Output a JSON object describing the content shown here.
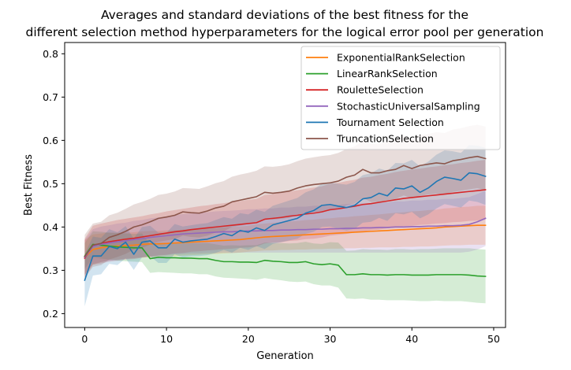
{
  "chart_data": {
    "type": "line",
    "title": [
      "Averages and standard deviations of the best fitness for the",
      "different selection method hyperparameters for the logical error pool per generation"
    ],
    "xlabel": "Generation",
    "ylabel": "Best Fitness",
    "xlim": [
      -2.45,
      51.45
    ],
    "ylim": [
      0.168,
      0.826
    ],
    "xticks": [
      0,
      10,
      20,
      30,
      40,
      50
    ],
    "xtick_labels": [
      "0",
      "10",
      "20",
      "30",
      "40",
      "50"
    ],
    "yticks": [
      0.2,
      0.3,
      0.4,
      0.5,
      0.6,
      0.7,
      0.8
    ],
    "ytick_labels": [
      "0.2",
      "0.3",
      "0.4",
      "0.5",
      "0.6",
      "0.7",
      "0.8"
    ],
    "grid": false,
    "legend_position": "top-right",
    "series": [
      {
        "name": "ExponentialRankSelection",
        "color": "#ff7f0e",
        "mean": [
          0.33,
          0.348,
          0.352,
          0.355,
          0.356,
          0.357,
          0.358,
          0.36,
          0.361,
          0.361,
          0.362,
          0.363,
          0.364,
          0.365,
          0.366,
          0.367,
          0.368,
          0.369,
          0.37,
          0.371,
          0.373,
          0.375,
          0.377,
          0.378,
          0.379,
          0.38,
          0.381,
          0.382,
          0.383,
          0.384,
          0.385,
          0.386,
          0.387,
          0.388,
          0.389,
          0.39,
          0.391,
          0.392,
          0.393,
          0.394,
          0.395,
          0.396,
          0.397,
          0.398,
          0.4,
          0.401,
          0.402,
          0.403,
          0.404,
          0.404
        ],
        "std": [
          0.04,
          0.035,
          0.033,
          0.032,
          0.031,
          0.03,
          0.03,
          0.03,
          0.03,
          0.03,
          0.03,
          0.03,
          0.03,
          0.03,
          0.03,
          0.03,
          0.03,
          0.03,
          0.03,
          0.03,
          0.03,
          0.031,
          0.031,
          0.032,
          0.032,
          0.033,
          0.033,
          0.034,
          0.034,
          0.035,
          0.035,
          0.036,
          0.036,
          0.037,
          0.037,
          0.038,
          0.038,
          0.039,
          0.04,
          0.04,
          0.041,
          0.041,
          0.042,
          0.042,
          0.043,
          0.043,
          0.044,
          0.044,
          0.045,
          0.045
        ]
      },
      {
        "name": "LinearRankSelection",
        "color": "#2ca02c",
        "mean": [
          0.333,
          0.36,
          0.358,
          0.356,
          0.354,
          0.353,
          0.352,
          0.352,
          0.327,
          0.33,
          0.329,
          0.329,
          0.328,
          0.328,
          0.327,
          0.327,
          0.323,
          0.32,
          0.32,
          0.319,
          0.319,
          0.318,
          0.323,
          0.321,
          0.32,
          0.318,
          0.318,
          0.32,
          0.315,
          0.313,
          0.315,
          0.312,
          0.29,
          0.29,
          0.292,
          0.29,
          0.29,
          0.289,
          0.29,
          0.29,
          0.289,
          0.289,
          0.289,
          0.29,
          0.29,
          0.29,
          0.29,
          0.289,
          0.287,
          0.286
        ],
        "std": [
          0.03,
          0.03,
          0.031,
          0.031,
          0.032,
          0.032,
          0.032,
          0.033,
          0.033,
          0.034,
          0.034,
          0.035,
          0.035,
          0.035,
          0.036,
          0.036,
          0.037,
          0.037,
          0.038,
          0.038,
          0.039,
          0.04,
          0.041,
          0.042,
          0.043,
          0.044,
          0.045,
          0.046,
          0.047,
          0.048,
          0.05,
          0.052,
          0.055,
          0.056,
          0.057,
          0.058,
          0.058,
          0.058,
          0.059,
          0.059,
          0.059,
          0.06,
          0.06,
          0.06,
          0.061,
          0.061,
          0.061,
          0.062,
          0.062,
          0.062
        ]
      },
      {
        "name": "RouletteSelection",
        "color": "#d62728",
        "mean": [
          0.328,
          0.358,
          0.362,
          0.366,
          0.369,
          0.372,
          0.374,
          0.377,
          0.38,
          0.383,
          0.386,
          0.389,
          0.391,
          0.394,
          0.396,
          0.398,
          0.4,
          0.402,
          0.404,
          0.406,
          0.408,
          0.41,
          0.418,
          0.42,
          0.422,
          0.425,
          0.427,
          0.43,
          0.432,
          0.435,
          0.44,
          0.442,
          0.445,
          0.448,
          0.452,
          0.454,
          0.457,
          0.46,
          0.463,
          0.466,
          0.468,
          0.47,
          0.472,
          0.474,
          0.476,
          0.478,
          0.48,
          0.482,
          0.484,
          0.486
        ],
        "std": [
          0.045,
          0.045,
          0.046,
          0.046,
          0.047,
          0.047,
          0.048,
          0.048,
          0.049,
          0.049,
          0.05,
          0.05,
          0.051,
          0.051,
          0.052,
          0.052,
          0.053,
          0.053,
          0.054,
          0.054,
          0.055,
          0.055,
          0.056,
          0.056,
          0.057,
          0.057,
          0.058,
          0.058,
          0.059,
          0.059,
          0.06,
          0.06,
          0.061,
          0.061,
          0.062,
          0.062,
          0.063,
          0.063,
          0.064,
          0.064,
          0.065,
          0.065,
          0.066,
          0.066,
          0.067,
          0.067,
          0.068,
          0.068,
          0.069,
          0.069
        ]
      },
      {
        "name": "StochasticUniversalSampling",
        "color": "#9467bd",
        "mean": [
          0.33,
          0.355,
          0.36,
          0.363,
          0.366,
          0.368,
          0.371,
          0.373,
          0.376,
          0.378,
          0.38,
          0.382,
          0.384,
          0.385,
          0.386,
          0.387,
          0.388,
          0.389,
          0.389,
          0.39,
          0.391,
          0.391,
          0.392,
          0.392,
          0.393,
          0.393,
          0.394,
          0.394,
          0.395,
          0.395,
          0.396,
          0.396,
          0.397,
          0.397,
          0.398,
          0.398,
          0.399,
          0.399,
          0.4,
          0.4,
          0.401,
          0.401,
          0.402,
          0.402,
          0.403,
          0.403,
          0.404,
          0.406,
          0.412,
          0.42
        ],
        "std": [
          0.04,
          0.04,
          0.041,
          0.041,
          0.042,
          0.042,
          0.043,
          0.043,
          0.044,
          0.044,
          0.045,
          0.045,
          0.046,
          0.046,
          0.047,
          0.047,
          0.048,
          0.048,
          0.049,
          0.049,
          0.05,
          0.05,
          0.051,
          0.051,
          0.052,
          0.052,
          0.053,
          0.053,
          0.054,
          0.054,
          0.055,
          0.055,
          0.056,
          0.056,
          0.057,
          0.057,
          0.058,
          0.058,
          0.059,
          0.059,
          0.06,
          0.06,
          0.061,
          0.061,
          0.062,
          0.062,
          0.063,
          0.063,
          0.064,
          0.064
        ]
      },
      {
        "name": "Tournament Selection",
        "color": "#1f77b4",
        "mean": [
          0.277,
          0.333,
          0.333,
          0.355,
          0.35,
          0.365,
          0.337,
          0.365,
          0.368,
          0.352,
          0.352,
          0.372,
          0.365,
          0.368,
          0.37,
          0.372,
          0.378,
          0.385,
          0.38,
          0.392,
          0.388,
          0.398,
          0.392,
          0.405,
          0.41,
          0.415,
          0.42,
          0.432,
          0.438,
          0.45,
          0.452,
          0.448,
          0.445,
          0.45,
          0.465,
          0.468,
          0.478,
          0.472,
          0.49,
          0.488,
          0.495,
          0.48,
          0.49,
          0.505,
          0.515,
          0.512,
          0.508,
          0.525,
          0.523,
          0.517
        ],
        "std": [
          0.06,
          0.045,
          0.042,
          0.04,
          0.038,
          0.037,
          0.036,
          0.035,
          0.035,
          0.035,
          0.035,
          0.035,
          0.036,
          0.036,
          0.037,
          0.037,
          0.038,
          0.038,
          0.039,
          0.04,
          0.041,
          0.042,
          0.043,
          0.044,
          0.045,
          0.046,
          0.047,
          0.048,
          0.049,
          0.05,
          0.051,
          0.052,
          0.053,
          0.054,
          0.055,
          0.056,
          0.057,
          0.058,
          0.058,
          0.059,
          0.06,
          0.06,
          0.061,
          0.062,
          0.062,
          0.063,
          0.063,
          0.064,
          0.065,
          0.066
        ]
      },
      {
        "name": "TruncationSelection",
        "color": "#8c564b",
        "mean": [
          0.332,
          0.358,
          0.362,
          0.376,
          0.382,
          0.39,
          0.4,
          0.405,
          0.412,
          0.42,
          0.423,
          0.427,
          0.435,
          0.433,
          0.432,
          0.437,
          0.444,
          0.448,
          0.458,
          0.462,
          0.466,
          0.47,
          0.48,
          0.478,
          0.48,
          0.483,
          0.49,
          0.495,
          0.498,
          0.5,
          0.502,
          0.506,
          0.515,
          0.52,
          0.533,
          0.525,
          0.525,
          0.53,
          0.533,
          0.542,
          0.535,
          0.542,
          0.545,
          0.548,
          0.546,
          0.553,
          0.556,
          0.56,
          0.563,
          0.558
        ],
        "std": [
          0.05,
          0.05,
          0.05,
          0.051,
          0.051,
          0.052,
          0.052,
          0.053,
          0.053,
          0.054,
          0.054,
          0.055,
          0.055,
          0.056,
          0.056,
          0.057,
          0.057,
          0.058,
          0.058,
          0.059,
          0.059,
          0.06,
          0.06,
          0.061,
          0.061,
          0.062,
          0.062,
          0.063,
          0.063,
          0.064,
          0.064,
          0.065,
          0.065,
          0.066,
          0.066,
          0.067,
          0.067,
          0.068,
          0.068,
          0.069,
          0.069,
          0.07,
          0.07,
          0.071,
          0.071,
          0.072,
          0.072,
          0.073,
          0.073,
          0.074
        ]
      }
    ]
  }
}
